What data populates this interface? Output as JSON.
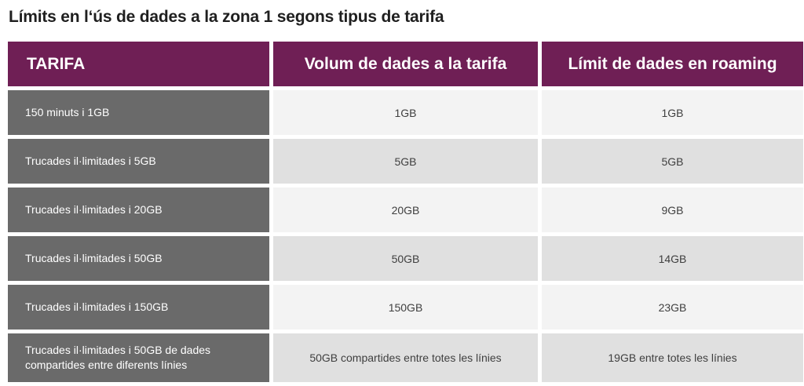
{
  "title": "Límits en l‘ús de dades a la zona 1 segons tipus de tarifa",
  "table": {
    "headers": [
      "TARIFA",
      "Volum de dades a la tarifa",
      "Límit de dades en roaming"
    ],
    "rows": [
      {
        "tarifa": "150 minuts i 1GB",
        "volum": "1GB",
        "limit": "1GB"
      },
      {
        "tarifa": "Trucades il·limitades i 5GB",
        "volum": "5GB",
        "limit": "5GB"
      },
      {
        "tarifa": "Trucades il·limitades i 20GB",
        "volum": "20GB",
        "limit": "9GB"
      },
      {
        "tarifa": "Trucades il·limitades i 50GB",
        "volum": "50GB",
        "limit": "14GB"
      },
      {
        "tarifa": "Trucades il·limitades i 150GB",
        "volum": "150GB",
        "limit": "23GB"
      },
      {
        "tarifa": "Trucades il·limitades i 50GB de dades compartides entre diferents línies",
        "volum": "50GB compartides entre totes les línies",
        "limit": "19GB entre totes les línies"
      }
    ]
  },
  "colors": {
    "header_bg": "#6f1f55",
    "first_col_bg": "#6a6a6a",
    "row_light": "#f3f3f3",
    "row_dark": "#e0e0e0"
  }
}
